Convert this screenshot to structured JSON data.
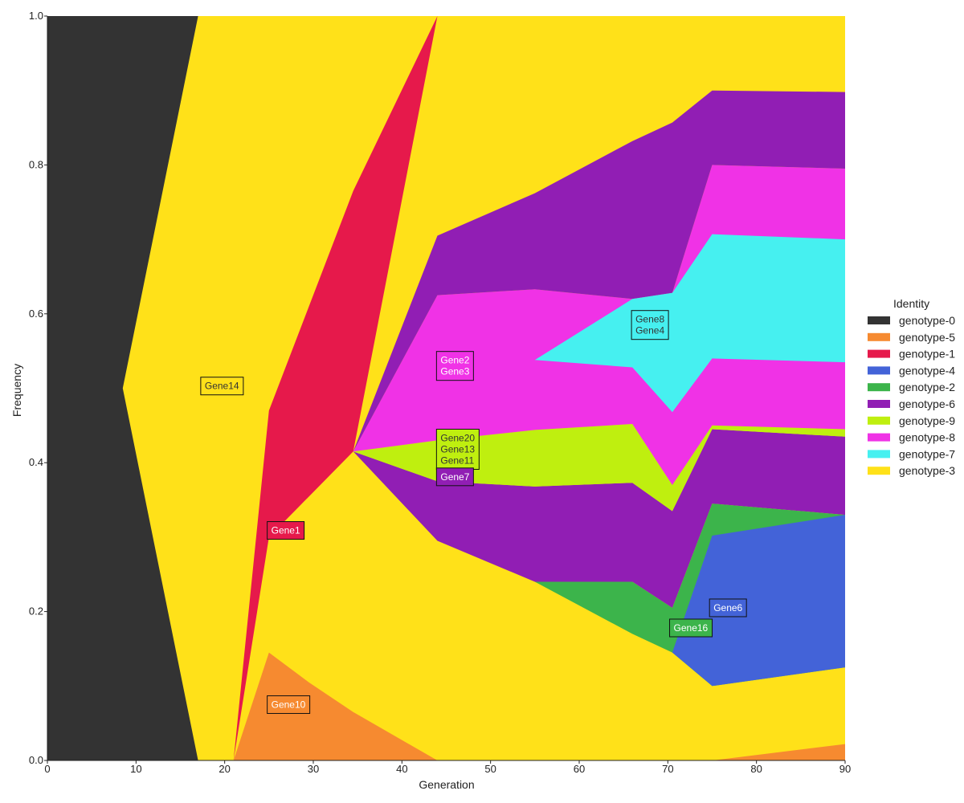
{
  "chart_data": {
    "type": "area",
    "subtype": "stacked-muller",
    "title": "",
    "xlabel": "Generation",
    "ylabel": "Frequency",
    "xlim": [
      0,
      90
    ],
    "ylim": [
      0,
      1
    ],
    "xticks": [
      "0",
      "10",
      "20",
      "30",
      "40",
      "50",
      "60",
      "70",
      "80",
      "90"
    ],
    "yticks": [
      "0.0",
      "0.2",
      "0.4",
      "0.6",
      "0.8",
      "1.0"
    ],
    "grid": false,
    "legend": {
      "title": "Identity",
      "position": "right",
      "entries": [
        {
          "label": "genotype-0",
          "color": "#333333"
        },
        {
          "label": "genotype-5",
          "color": "#f68a30"
        },
        {
          "label": "genotype-1",
          "color": "#e6194b"
        },
        {
          "label": "genotype-4",
          "color": "#4363d8"
        },
        {
          "label": "genotype-2",
          "color": "#3cb44b"
        },
        {
          "label": "genotype-6",
          "color": "#911eb4"
        },
        {
          "label": "genotype-9",
          "color": "#bfef0f"
        },
        {
          "label": "genotype-8",
          "color": "#f032e6"
        },
        {
          "label": "genotype-7",
          "color": "#46f0f0"
        },
        {
          "label": "genotype-3",
          "color": "#ffe119"
        }
      ]
    },
    "bands": [
      {
        "name": "genotype-0",
        "color": "#333333",
        "x": [
          0,
          8.5,
          17,
          90
        ],
        "low": [
          0,
          0,
          0,
          0
        ],
        "high": [
          1,
          1,
          1,
          1
        ]
      },
      {
        "name": "genotype-3",
        "color": "#ffe119",
        "x": [
          8.5,
          17,
          21,
          25,
          34.5,
          44,
          90
        ],
        "low": [
          0.5,
          0,
          0,
          0,
          0,
          0,
          0
        ],
        "high": [
          0.5,
          1,
          1,
          1,
          1,
          1,
          1
        ]
      },
      {
        "name": "genotype-1",
        "color": "#e6194b",
        "x": [
          21,
          25,
          34.5,
          44,
          90
        ],
        "low": [
          0,
          0.3,
          0.415,
          1,
          1
        ],
        "high": [
          0,
          0.47,
          0.765,
          1,
          1
        ]
      },
      {
        "name": "genotype-5",
        "color": "#f68a30",
        "x": [
          21,
          25,
          29.5,
          34.5,
          44
        ],
        "low": [
          0,
          0,
          0,
          0,
          0
        ],
        "high": [
          0,
          0.145,
          0.105,
          0.065,
          0
        ]
      },
      {
        "name": "genotype-5",
        "color": "#f68a30",
        "x": [
          75,
          90
        ],
        "low": [
          0,
          0
        ],
        "high": [
          0,
          0.022
        ]
      },
      {
        "name": "genotype-6",
        "color": "#911eb4",
        "x": [
          34.5,
          44,
          55,
          66,
          70.5,
          75,
          90
        ],
        "low": [
          0.415,
          0.295,
          0.24,
          0.24,
          0.205,
          0.345,
          0.33
        ],
        "high": [
          0.415,
          0.375,
          0.368,
          0.373,
          0.335,
          0.445,
          0.435
        ]
      },
      {
        "name": "genotype-9",
        "color": "#bfef0f",
        "x": [
          34.5,
          44,
          55,
          66,
          70.5,
          75,
          90
        ],
        "low": [
          0.415,
          0.375,
          0.368,
          0.373,
          0.335,
          0.445,
          0.435
        ],
        "high": [
          0.415,
          0.43,
          0.444,
          0.452,
          0.37,
          0.45,
          0.445
        ]
      },
      {
        "name": "genotype-8",
        "color": "#f032e6",
        "x": [
          34.5,
          44,
          55,
          66,
          70.5,
          75,
          90
        ],
        "low": [
          0.415,
          0.43,
          0.444,
          0.452,
          0.37,
          0.45,
          0.445
        ],
        "high": [
          0.415,
          0.625,
          0.633,
          0.62,
          0.628,
          0.8,
          0.795
        ]
      },
      {
        "name": "genotype-6",
        "color": "#911eb4",
        "x": [
          34.5,
          44,
          55,
          66,
          70.5,
          75,
          90
        ],
        "low": [
          0.415,
          0.625,
          0.633,
          0.62,
          0.628,
          0.8,
          0.795
        ],
        "high": [
          0.415,
          0.705,
          0.762,
          0.832,
          0.857,
          0.9,
          0.898
        ]
      },
      {
        "name": "genotype-7",
        "color": "#46f0f0",
        "x": [
          55,
          66,
          70.5,
          75,
          90
        ],
        "low": [
          0.538,
          0.528,
          0.468,
          0.54,
          0.535
        ],
        "high": [
          0.538,
          0.62,
          0.628,
          0.707,
          0.7
        ]
      },
      {
        "name": "genotype-2",
        "color": "#3cb44b",
        "x": [
          55,
          66,
          70.5,
          75,
          90
        ],
        "low": [
          0.24,
          0.17,
          0.145,
          0.1,
          0.125
        ],
        "high": [
          0.24,
          0.24,
          0.205,
          0.345,
          0.33
        ]
      },
      {
        "name": "genotype-4",
        "color": "#4363d8",
        "x": [
          70.5,
          75,
          90
        ],
        "low": [
          0.145,
          0.1,
          0.125
        ],
        "high": [
          0.145,
          0.302,
          0.33
        ]
      }
    ],
    "annotations": [
      {
        "lines": [
          "Gene14"
        ],
        "x": 17.3,
        "y": 0.503,
        "bg": "#ffe119",
        "fg": "#333333"
      },
      {
        "lines": [
          "Gene1"
        ],
        "x": 24.8,
        "y": 0.309,
        "bg": "#e6194b",
        "fg": "#ffffff"
      },
      {
        "lines": [
          "Gene10"
        ],
        "x": 24.8,
        "y": 0.075,
        "bg": "#f68a30",
        "fg": "#ffffff"
      },
      {
        "lines": [
          "Gene2",
          "Gene3"
        ],
        "x": 43.9,
        "y": 0.53,
        "bg": "#f032e6",
        "fg": "#ffffff"
      },
      {
        "lines": [
          "Gene20",
          "Gene13",
          "Gene11"
        ],
        "x": 43.9,
        "y": 0.418,
        "bg": "#bfef0f",
        "fg": "#333333"
      },
      {
        "lines": [
          "Gene7"
        ],
        "x": 43.9,
        "y": 0.381,
        "bg": "#911eb4",
        "fg": "#ffffff"
      },
      {
        "lines": [
          "Gene8",
          "Gene4"
        ],
        "x": 65.9,
        "y": 0.585,
        "bg": "#46f0f0",
        "fg": "#333333"
      },
      {
        "lines": [
          "Gene6"
        ],
        "x": 74.7,
        "y": 0.205,
        "bg": "#4363d8",
        "fg": "#ffffff"
      },
      {
        "lines": [
          "Gene16"
        ],
        "x": 70.2,
        "y": 0.178,
        "bg": "#3cb44b",
        "fg": "#ffffff"
      }
    ]
  }
}
